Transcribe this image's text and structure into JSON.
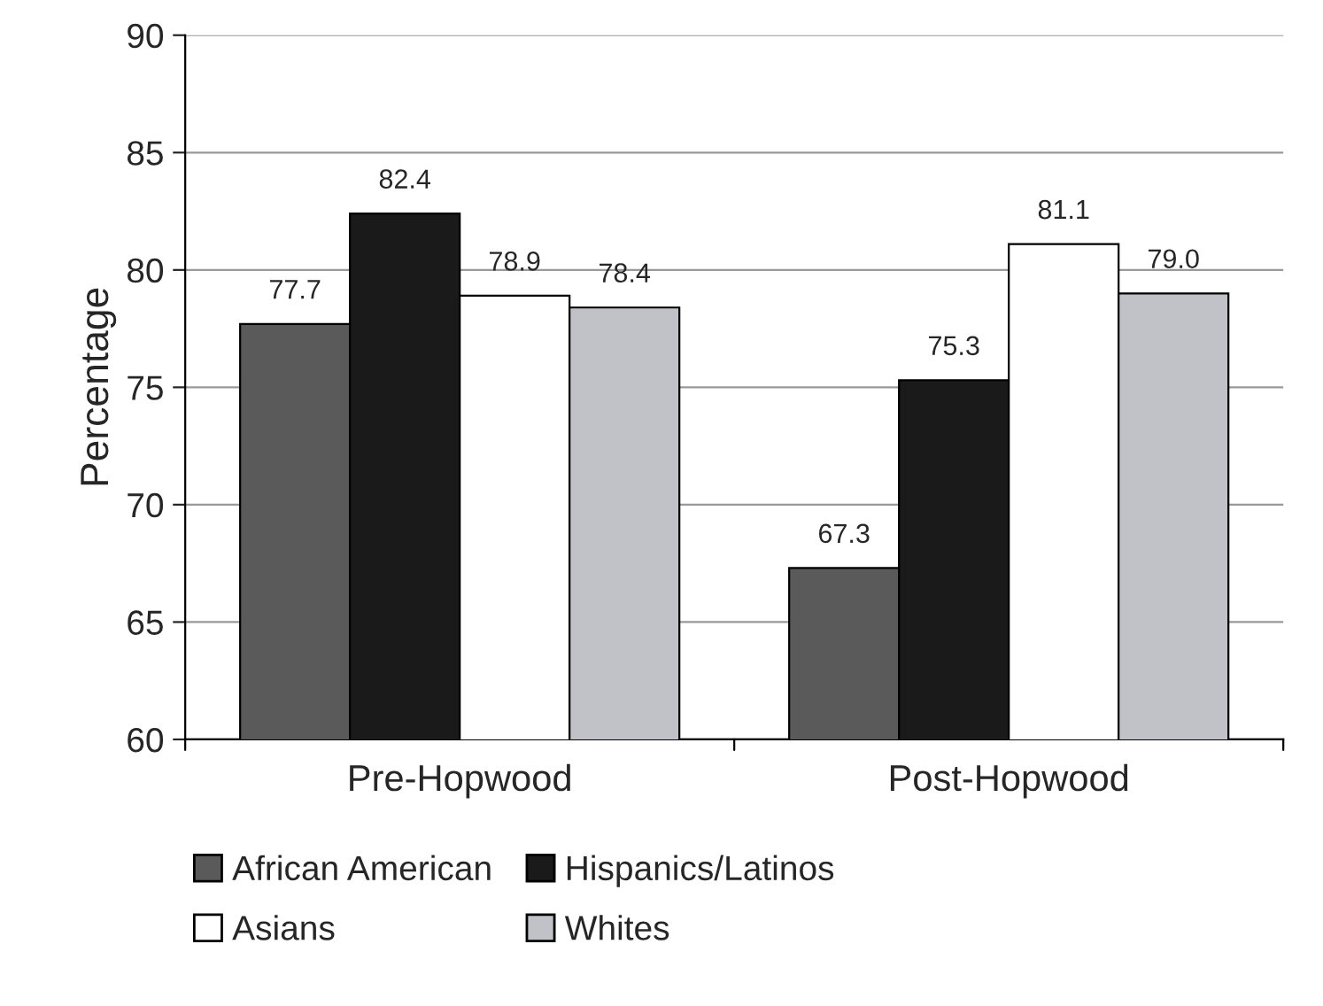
{
  "chart_data": {
    "type": "bar",
    "ylabel": "Percentage",
    "categories": [
      "Pre-Hopwood",
      "Post-Hopwood"
    ],
    "series": [
      {
        "name": "African American",
        "color": "#5a5a5a",
        "values": [
          77.7,
          67.3
        ],
        "value_labels": [
          "77.7",
          "67.3"
        ]
      },
      {
        "name": "Hispanics/Latinos",
        "color": "#1a1a1a",
        "values": [
          82.4,
          75.3
        ],
        "value_labels": [
          "82.4",
          "75.3"
        ]
      },
      {
        "name": "Asians",
        "color": "#ffffff",
        "values": [
          78.9,
          81.1
        ],
        "value_labels": [
          "78.9",
          "81.1"
        ]
      },
      {
        "name": "Whites",
        "color": "#c0c2c8",
        "values": [
          78.4,
          79.0
        ],
        "value_labels": [
          "78.4",
          "79.0"
        ]
      }
    ],
    "ylim": [
      60,
      90
    ],
    "yticks": [
      60,
      65,
      70,
      75,
      80,
      85,
      90
    ],
    "grid": "y",
    "legend": "bottom"
  }
}
